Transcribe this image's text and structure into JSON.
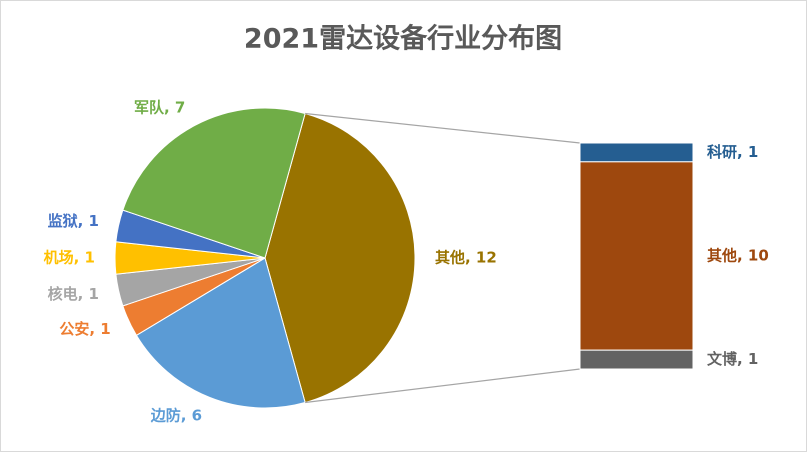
{
  "chart_data": {
    "type": "bar-of-pie",
    "title": "2021雷达设备行业分布图",
    "pie": {
      "categories": [
        "其他",
        "边防",
        "公安",
        "核电",
        "机场",
        "监狱",
        "军队"
      ],
      "values": [
        12,
        6,
        1,
        1,
        1,
        1,
        7
      ],
      "value_labels": [
        "其他, 12",
        "边防, 6",
        "公安, 1",
        "核电, 1",
        "机场, 1",
        "监狱, 1",
        "军队, 7"
      ],
      "colors": [
        "#997300",
        "#5b9bd5",
        "#ed7d31",
        "#a5a5a5",
        "#ffc000",
        "#4472c4",
        "#70ad47"
      ]
    },
    "bar": {
      "categories": [
        "科研",
        "其他",
        "文博"
      ],
      "values": [
        1,
        10,
        1
      ],
      "value_labels": [
        "科研, 1",
        "其他, 10",
        "文博, 1"
      ],
      "colors": [
        "#255e91",
        "#9e480e",
        "#636363"
      ]
    }
  }
}
